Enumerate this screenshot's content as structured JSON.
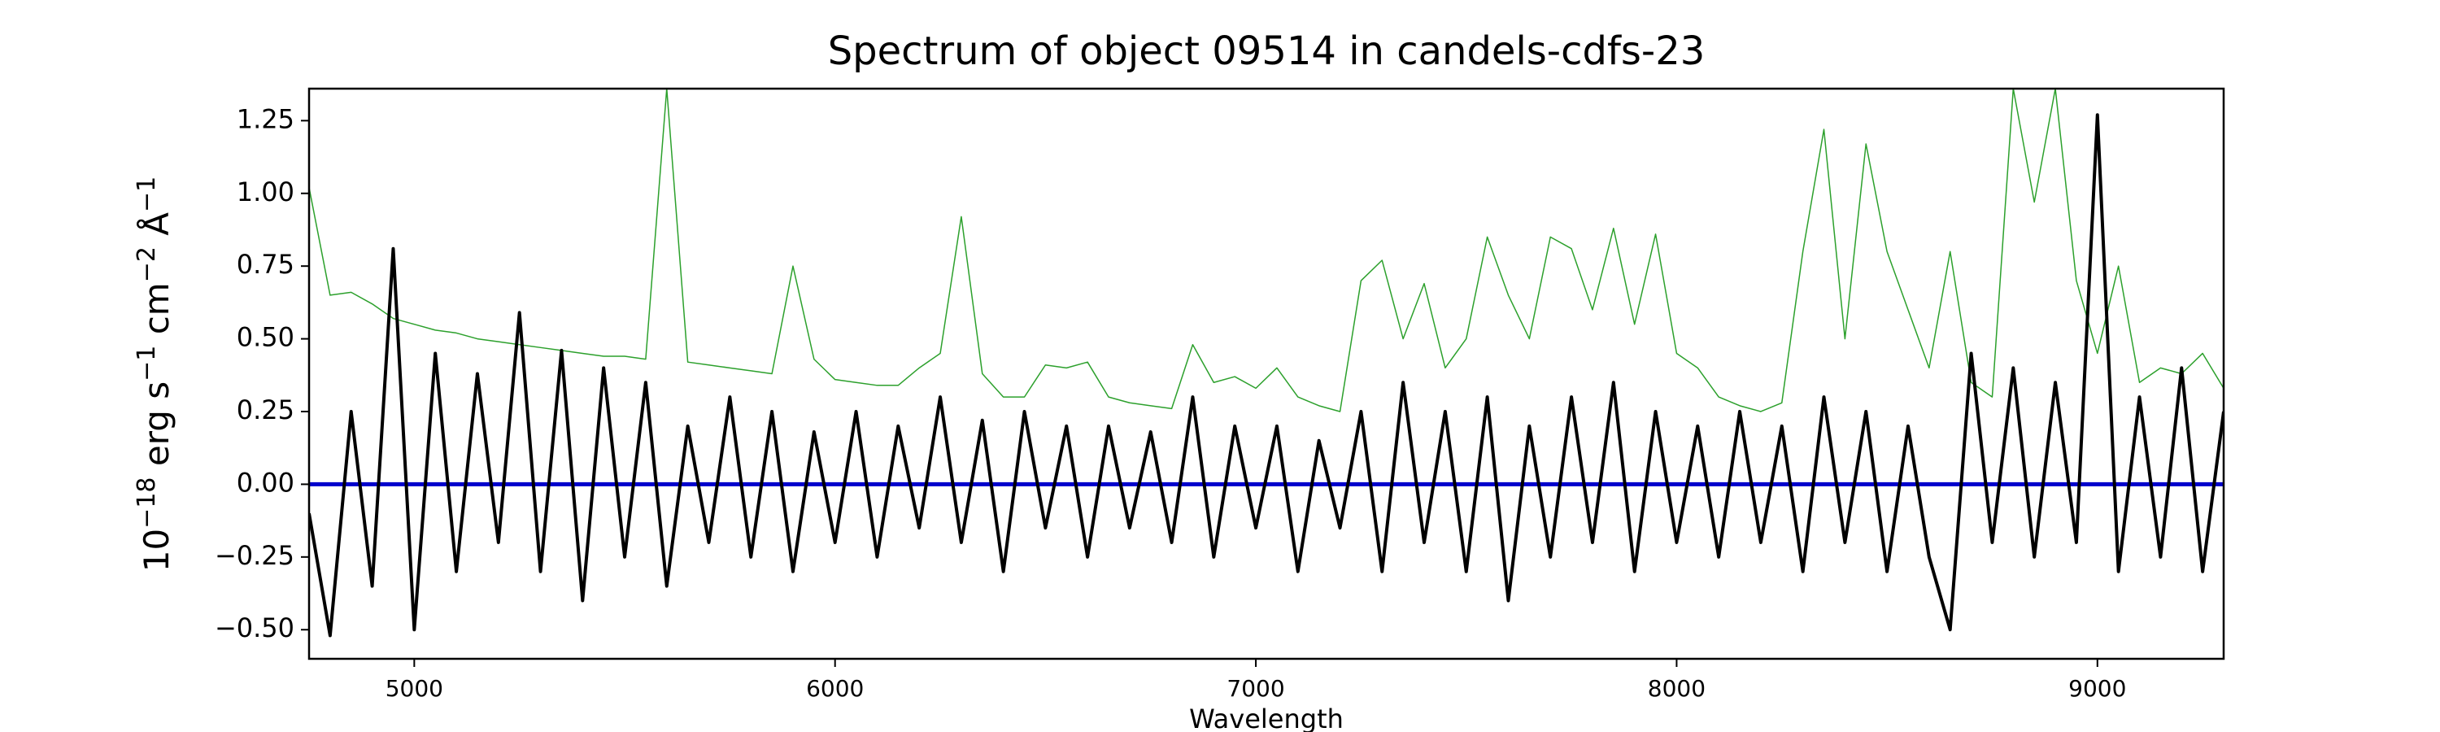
{
  "chart_data": {
    "type": "line",
    "title": "Spectrum of object 09514 in candels-cdfs-23",
    "xlabel": "Wavelength",
    "ylabel_parts": [
      "10",
      "−18",
      " erg s",
      "−1",
      " cm",
      "−2",
      " Å",
      "−1"
    ],
    "xlim": [
      4750,
      9300
    ],
    "ylim": [
      -0.6,
      1.36
    ],
    "xticks": [
      5000,
      6000,
      7000,
      8000,
      9000
    ],
    "yticks": [
      {
        "value": -0.5,
        "label": "−0.50"
      },
      {
        "value": -0.25,
        "label": "−0.25"
      },
      {
        "value": 0,
        "label": "0.00"
      },
      {
        "value": 0.25,
        "label": "0.25"
      },
      {
        "value": 0.5,
        "label": "0.50"
      },
      {
        "value": 0.75,
        "label": "0.75"
      },
      {
        "value": 1,
        "label": "1.00"
      },
      {
        "value": 1.25,
        "label": "1.25"
      }
    ],
    "grid": false,
    "series": [
      {
        "color": "#2ca02c",
        "width": 1.5,
        "x": [
          4750,
          4800,
          4850,
          4900,
          4950,
          5000,
          5050,
          5100,
          5150,
          5200,
          5250,
          5300,
          5350,
          5400,
          5450,
          5500,
          5550,
          5600,
          5650,
          5700,
          5750,
          5800,
          5850,
          5900,
          5950,
          6000,
          6050,
          6100,
          6150,
          6200,
          6250,
          6300,
          6350,
          6400,
          6450,
          6500,
          6550,
          6600,
          6650,
          6700,
          6750,
          6800,
          6850,
          6900,
          6950,
          7000,
          7050,
          7100,
          7150,
          7200,
          7250,
          7300,
          7350,
          7400,
          7450,
          7500,
          7550,
          7600,
          7650,
          7700,
          7750,
          7800,
          7850,
          7900,
          7950,
          8000,
          8050,
          8100,
          8150,
          8200,
          8250,
          8300,
          8350,
          8400,
          8450,
          8500,
          8550,
          8600,
          8650,
          8700,
          8750,
          8800,
          8850,
          8900,
          8950,
          9000,
          9050,
          9100,
          9150,
          9200,
          9250,
          9300
        ],
        "values": [
          1.02,
          0.65,
          0.66,
          0.62,
          0.57,
          0.55,
          0.53,
          0.52,
          0.5,
          0.49,
          0.48,
          0.47,
          0.46,
          0.45,
          0.44,
          0.44,
          0.43,
          1.36,
          0.42,
          0.41,
          0.4,
          0.39,
          0.38,
          0.75,
          0.43,
          0.36,
          0.35,
          0.34,
          0.34,
          0.4,
          0.45,
          0.92,
          0.38,
          0.3,
          0.3,
          0.41,
          0.4,
          0.42,
          0.3,
          0.28,
          0.27,
          0.26,
          0.48,
          0.35,
          0.37,
          0.33,
          0.4,
          0.3,
          0.27,
          0.25,
          0.7,
          0.77,
          0.5,
          0.69,
          0.4,
          0.5,
          0.85,
          0.65,
          0.5,
          0.85,
          0.81,
          0.6,
          0.88,
          0.55,
          0.86,
          0.45,
          0.4,
          0.3,
          0.27,
          0.25,
          0.28,
          0.8,
          1.22,
          0.5,
          1.17,
          0.8,
          0.6,
          0.4,
          0.8,
          0.35,
          0.3,
          1.36,
          0.97,
          1.36,
          0.7,
          0.45,
          0.75,
          0.35,
          0.4,
          0.38,
          0.45,
          0.33
        ]
      },
      {
        "color": "#0000cc",
        "width": 5,
        "x": [
          4750,
          9300
        ],
        "values": [
          0,
          0
        ]
      },
      {
        "color": "#000000",
        "width": 4,
        "x": [
          4750,
          4800,
          4850,
          4900,
          4950,
          5000,
          5050,
          5100,
          5150,
          5200,
          5250,
          5300,
          5350,
          5400,
          5450,
          5500,
          5550,
          5600,
          5650,
          5700,
          5750,
          5800,
          5850,
          5900,
          5950,
          6000,
          6050,
          6100,
          6150,
          6200,
          6250,
          6300,
          6350,
          6400,
          6450,
          6500,
          6550,
          6600,
          6650,
          6700,
          6750,
          6800,
          6850,
          6900,
          6950,
          7000,
          7050,
          7100,
          7150,
          7200,
          7250,
          7300,
          7350,
          7400,
          7450,
          7500,
          7550,
          7600,
          7650,
          7700,
          7750,
          7800,
          7850,
          7900,
          7950,
          8000,
          8050,
          8100,
          8150,
          8200,
          8250,
          8300,
          8350,
          8400,
          8450,
          8500,
          8550,
          8600,
          8650,
          8700,
          8750,
          8800,
          8850,
          8900,
          8950,
          9000,
          9050,
          9100,
          9150,
          9200,
          9250,
          9300
        ],
        "values": [
          -0.1,
          -0.52,
          0.25,
          -0.35,
          0.81,
          -0.5,
          0.45,
          -0.3,
          0.38,
          -0.2,
          0.59,
          -0.3,
          0.46,
          -0.4,
          0.4,
          -0.25,
          0.35,
          -0.35,
          0.2,
          -0.2,
          0.3,
          -0.25,
          0.25,
          -0.3,
          0.18,
          -0.2,
          0.25,
          -0.25,
          0.2,
          -0.15,
          0.3,
          -0.2,
          0.22,
          -0.3,
          0.25,
          -0.15,
          0.2,
          -0.25,
          0.2,
          -0.15,
          0.18,
          -0.2,
          0.3,
          -0.25,
          0.2,
          -0.15,
          0.2,
          -0.3,
          0.15,
          -0.15,
          0.25,
          -0.3,
          0.35,
          -0.2,
          0.25,
          -0.3,
          0.3,
          -0.4,
          0.2,
          -0.25,
          0.3,
          -0.2,
          0.35,
          -0.3,
          0.25,
          -0.2,
          0.2,
          -0.25,
          0.25,
          -0.2,
          0.2,
          -0.3,
          0.3,
          -0.2,
          0.25,
          -0.3,
          0.2,
          -0.25,
          -0.5,
          0.45,
          -0.2,
          0.4,
          -0.25,
          0.35,
          -0.2,
          1.27,
          -0.3,
          0.3,
          -0.25,
          0.4,
          -0.3,
          0.25
        ]
      }
    ]
  }
}
